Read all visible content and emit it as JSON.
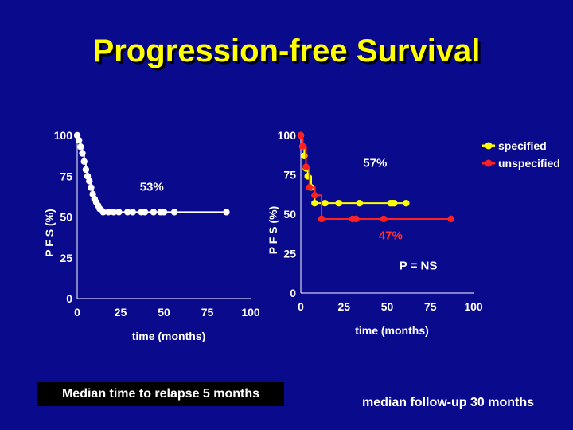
{
  "title": "Progression-free Survival",
  "footer_left": "Median time to relapse 5 months",
  "footer_right": "median follow-up 30 months",
  "chart_data": [
    {
      "type": "line",
      "step": true,
      "xlabel": "time (months)",
      "ylabel": "P F S (%)",
      "xlim": [
        0,
        100
      ],
      "ylim": [
        0,
        100
      ],
      "xticks": [
        "0",
        "25",
        "50",
        "75",
        "100"
      ],
      "yticks": [
        "0",
        "25",
        "50",
        "75",
        "100"
      ],
      "series": [
        {
          "color": "#ffffff",
          "points": [
            [
              0,
              100
            ],
            [
              1,
              97
            ],
            [
              2,
              93
            ],
            [
              3,
              89
            ],
            [
              4,
              84
            ],
            [
              5,
              79
            ],
            [
              6,
              75
            ],
            [
              7,
              72
            ],
            [
              8,
              68
            ],
            [
              9,
              64
            ],
            [
              10,
              61
            ],
            [
              11,
              59
            ],
            [
              12,
              57
            ],
            [
              13,
              55
            ],
            [
              15,
              53
            ],
            [
              18,
              53
            ],
            [
              21,
              53
            ],
            [
              24,
              53
            ],
            [
              29,
              53
            ],
            [
              32,
              53
            ],
            [
              37,
              53
            ],
            [
              39,
              53
            ],
            [
              44,
              53
            ],
            [
              48,
              53
            ],
            [
              50,
              53
            ],
            [
              56,
              53
            ],
            [
              86,
              53
            ]
          ]
        }
      ],
      "annotations": [
        {
          "text": "53%",
          "x": 43,
          "y": 66,
          "color": "#ffffff"
        }
      ]
    },
    {
      "type": "line",
      "step": true,
      "xlabel": "time (months)",
      "ylabel": "P F S (%)",
      "xlim": [
        0,
        100
      ],
      "ylim": [
        0,
        100
      ],
      "xticks": [
        "0",
        "25",
        "50",
        "75",
        "100"
      ],
      "yticks": [
        "0",
        "25",
        "50",
        "75",
        "100"
      ],
      "series": [
        {
          "name": "specified",
          "color": "#ffff00",
          "points": [
            [
              0,
              100
            ],
            [
              1,
              93
            ],
            [
              2,
              87
            ],
            [
              3,
              79
            ],
            [
              4,
              74
            ],
            [
              6,
              67
            ],
            [
              8,
              57
            ],
            [
              14,
              57
            ],
            [
              22,
              57
            ],
            [
              34,
              57
            ],
            [
              52,
              57
            ],
            [
              53,
              57
            ],
            [
              54,
              57
            ],
            [
              61,
              57
            ]
          ]
        },
        {
          "name": "unspecified",
          "color": "#ff2020",
          "points": [
            [
              0,
              100
            ],
            [
              1,
              93
            ],
            [
              3,
              80
            ],
            [
              5,
              67
            ],
            [
              8,
              62
            ],
            [
              12,
              47
            ],
            [
              30,
              47
            ],
            [
              32,
              47
            ],
            [
              48,
              47
            ],
            [
              87,
              47
            ]
          ]
        }
      ],
      "annotations": [
        {
          "text": "57%",
          "x": 43,
          "y": 80,
          "color": "#ffffff"
        },
        {
          "text": "47%",
          "x": 52,
          "y": 34,
          "color": "#ff3030"
        },
        {
          "text": "P = NS",
          "x": 68,
          "y": 15,
          "color": "#ffffff"
        }
      ],
      "legend": "top-right"
    }
  ]
}
